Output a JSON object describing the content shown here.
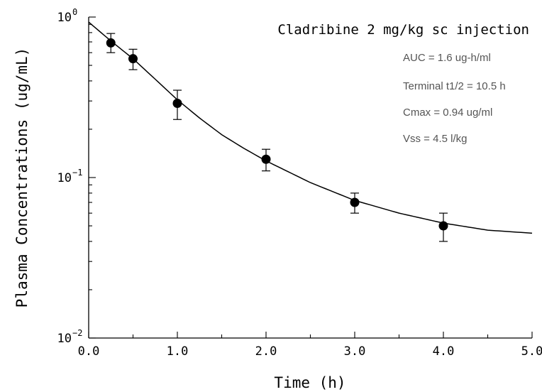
{
  "chart_data": {
    "type": "scatter",
    "title": "Cladribine 2 mg/kg sc injection",
    "xlabel": "Time (h)",
    "ylabel": "Plasma Concentrations (ug/mL)",
    "x_scale": "linear",
    "y_scale": "log",
    "xlim": [
      0,
      5
    ],
    "ylim": [
      0.01,
      1
    ],
    "x_ticks": [
      {
        "value": 0,
        "label": "0.0"
      },
      {
        "value": 1,
        "label": "1.0"
      },
      {
        "value": 2,
        "label": "2.0"
      },
      {
        "value": 3,
        "label": "3.0"
      },
      {
        "value": 4,
        "label": "4.0"
      },
      {
        "value": 5,
        "label": "5.0"
      }
    ],
    "y_ticks": [
      {
        "value": 1,
        "base": "10",
        "exponent": "0"
      },
      {
        "value": 0.1,
        "base": "10",
        "exponent": "−1"
      },
      {
        "value": 0.01,
        "base": "10",
        "exponent": "−2"
      }
    ],
    "grid": false,
    "series": [
      {
        "points": [
          {
            "x": 0.25,
            "y": 0.69,
            "y_low": 0.6,
            "y_high": 0.79
          },
          {
            "x": 0.5,
            "y": 0.55,
            "y_low": 0.47,
            "y_high": 0.63
          },
          {
            "x": 1.0,
            "y": 0.29,
            "y_low": 0.23,
            "y_high": 0.35
          },
          {
            "x": 2.0,
            "y": 0.13,
            "y_low": 0.11,
            "y_high": 0.15
          },
          {
            "x": 3.0,
            "y": 0.07,
            "y_low": 0.06,
            "y_high": 0.08
          },
          {
            "x": 4.0,
            "y": 0.05,
            "y_low": 0.04,
            "y_high": 0.06
          }
        ]
      }
    ],
    "fit_curve": [
      [
        0,
        0.93
      ],
      [
        0.25,
        0.71
      ],
      [
        0.5,
        0.55
      ],
      [
        0.75,
        0.41
      ],
      [
        1.0,
        0.305
      ],
      [
        1.25,
        0.235
      ],
      [
        1.5,
        0.185
      ],
      [
        1.75,
        0.152
      ],
      [
        2.0,
        0.127
      ],
      [
        2.5,
        0.093
      ],
      [
        3.0,
        0.072
      ],
      [
        3.5,
        0.06
      ],
      [
        4.0,
        0.052
      ],
      [
        4.5,
        0.047
      ],
      [
        5.0,
        0.045
      ]
    ],
    "annotations": [
      "AUC = 1.6 ug-h/ml",
      "Terminal t1/2 = 10.5 h",
      "Cmax = 0.94 ug/ml",
      "Vss = 4.5 l/kg"
    ],
    "colors": {
      "axis": "#000000",
      "marker": "#000000",
      "annotation_text": "#555555"
    }
  }
}
